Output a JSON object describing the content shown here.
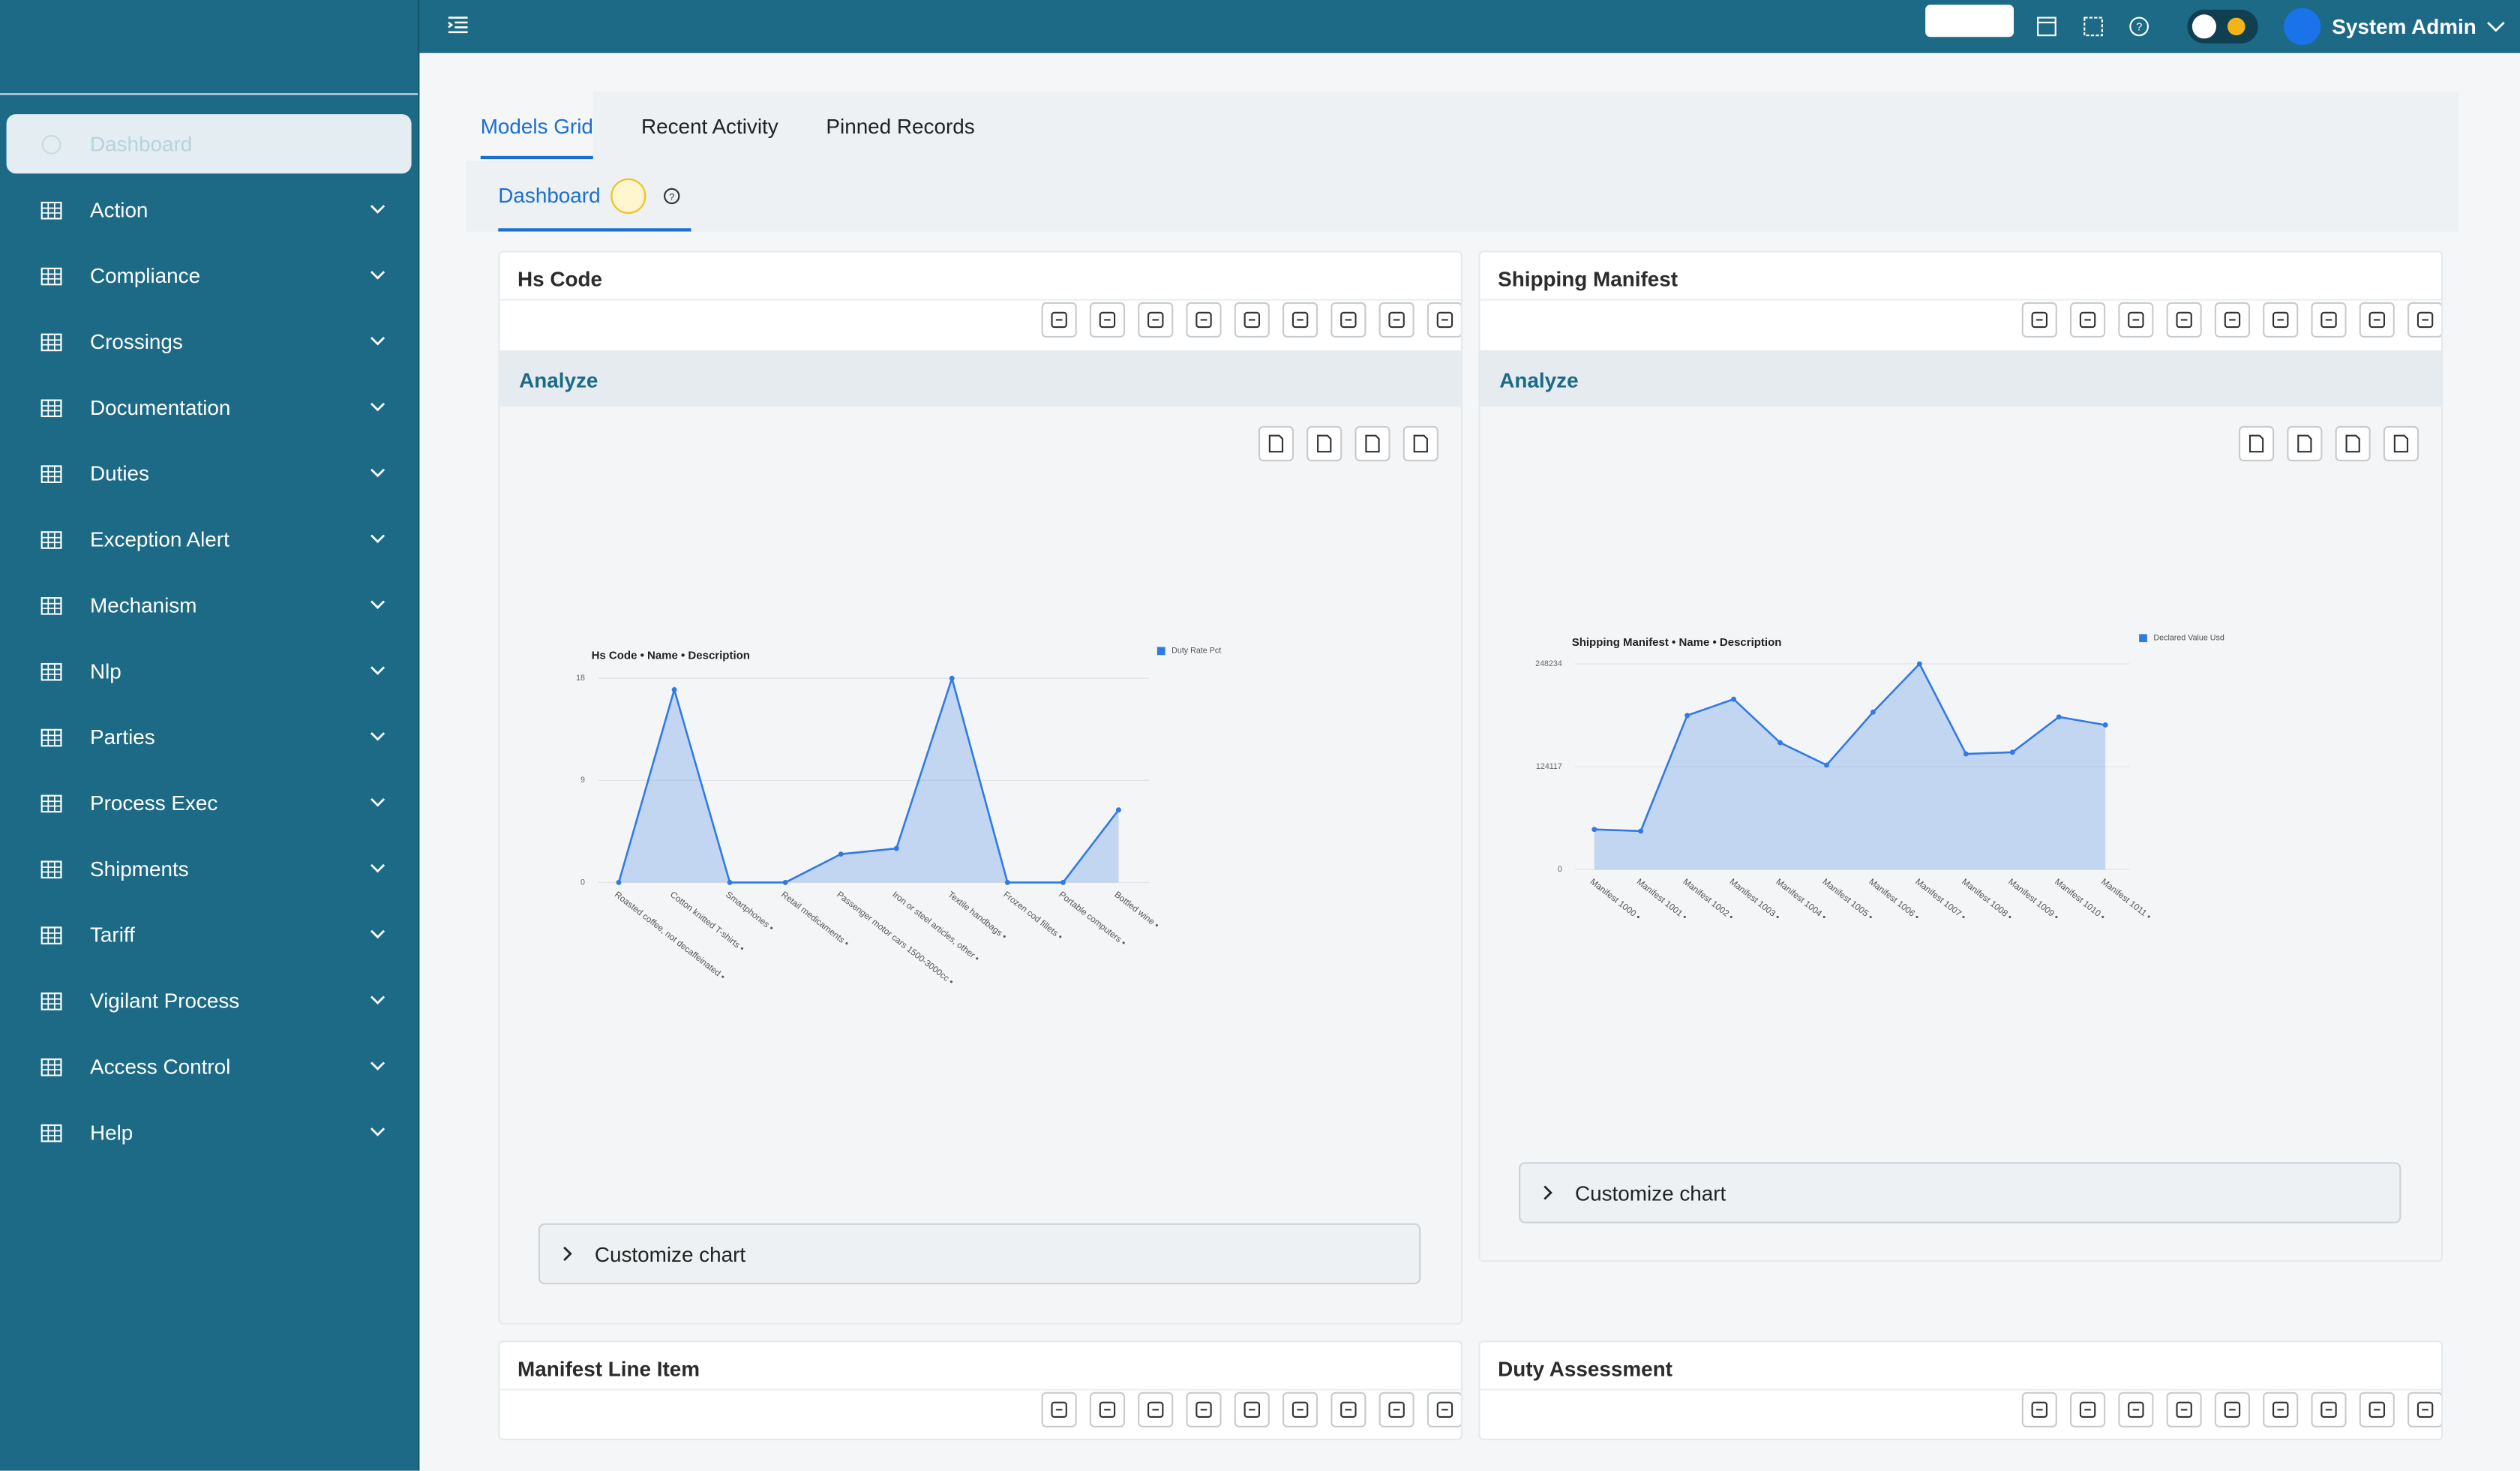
{
  "topbar": {
    "user": "System Admin"
  },
  "sidebar": {
    "items": [
      "Dashboard",
      "Action",
      "Compliance",
      "Crossings",
      "Documentation",
      "Duties",
      "Exception Alert",
      "Mechanism",
      "Nlp",
      "Parties",
      "Process Exec",
      "Shipments",
      "Tariff",
      "Vigilant Process",
      "Access Control",
      "Help"
    ]
  },
  "tabs": [
    "Models Grid",
    "Recent Activity",
    "Pinned Records"
  ],
  "subtab": "Dashboard",
  "widgets": [
    {
      "title": "Hs Code",
      "section": "Analyze",
      "customize": "Customize chart"
    },
    {
      "title": "Shipping Manifest",
      "section": "Analyze",
      "customize": "Customize chart"
    },
    {
      "title": "Manifest Line Item"
    },
    {
      "title": "Duty Assessment"
    }
  ],
  "chart_data": [
    {
      "type": "area",
      "title": "Hs Code • Name • Description",
      "categories": [
        "Roasted coffee, not decaffeinated •",
        "Cotton knitted T-shirts •",
        "Smartphones •",
        "Retail medicaments •",
        "Passenger motor cars 1500-3000cc •",
        "Iron or steel articles, other •",
        "Textile handbags •",
        "Frozen cod fillets •",
        "Portable computers •",
        "Bottled wine •"
      ],
      "series": [
        {
          "name": "Duty Rate Pct",
          "color": "#2f7ae5",
          "values": [
            0,
            17,
            0,
            0,
            2.5,
            3,
            18,
            0,
            0,
            6.4
          ]
        }
      ],
      "ylim": [
        0,
        18
      ],
      "yticks": [
        0,
        9,
        18
      ],
      "grid": true,
      "legend": "top-right"
    },
    {
      "type": "area",
      "title": "Shipping Manifest • Name • Description",
      "categories": [
        "Manifest 1000 •",
        "Manifest 1001 •",
        "Manifest 1002 •",
        "Manifest 1003 •",
        "Manifest 1004 •",
        "Manifest 1005 •",
        "Manifest 1006 •",
        "Manifest 1007 •",
        "Manifest 1008 •",
        "Manifest 1009 •",
        "Manifest 1010 •",
        "Manifest 1011 •"
      ],
      "series": [
        {
          "name": "Declared Value Usd",
          "color": "#2f7ae5",
          "values": [
            48500,
            46500,
            186000,
            205600,
            153200,
            126100,
            190000,
            248234,
            139600,
            141600,
            184200,
            174500
          ]
        }
      ],
      "ylim": [
        0,
        248234
      ],
      "yticks": [
        0,
        124117,
        248234
      ],
      "grid": true,
      "legend": "top-right"
    }
  ]
}
